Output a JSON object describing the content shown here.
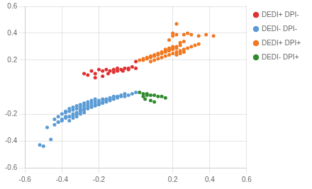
{
  "chart_data": {
    "type": "scatter",
    "series": [
      {
        "name": "DEDI+ DPI-",
        "color": "#e03030",
        "values": [
          [
            -0.28,
            0.1
          ],
          [
            -0.24,
            0.12
          ],
          [
            -0.2,
            0.13
          ],
          [
            -0.18,
            0.12
          ],
          [
            -0.16,
            0.13
          ],
          [
            -0.14,
            0.12
          ],
          [
            -0.12,
            0.13
          ],
          [
            -0.1,
            0.14
          ],
          [
            -0.08,
            0.13
          ],
          [
            -0.06,
            0.14
          ],
          [
            -0.04,
            0.14
          ],
          [
            -0.02,
            0.15
          ],
          [
            0.0,
            0.19
          ],
          [
            -0.22,
            0.1
          ],
          [
            -0.18,
            0.08
          ],
          [
            -0.15,
            0.1
          ],
          [
            -0.12,
            0.11
          ],
          [
            -0.1,
            0.12
          ],
          [
            -0.07,
            0.12
          ],
          [
            -0.04,
            0.13
          ],
          [
            0.0,
            0.14
          ],
          [
            -0.26,
            0.09
          ],
          [
            -0.22,
            0.07
          ]
        ]
      },
      {
        "name": "DEDI- DPI-",
        "color": "#5b9bd5",
        "values": [
          [
            -0.52,
            -0.43
          ],
          [
            -0.5,
            -0.44
          ],
          [
            -0.46,
            -0.39
          ],
          [
            -0.42,
            -0.26
          ],
          [
            -0.4,
            -0.25
          ],
          [
            -0.38,
            -0.23
          ],
          [
            -0.36,
            -0.22
          ],
          [
            -0.34,
            -0.21
          ],
          [
            -0.32,
            -0.2
          ],
          [
            -0.3,
            -0.18
          ],
          [
            -0.28,
            -0.17
          ],
          [
            -0.26,
            -0.16
          ],
          [
            -0.24,
            -0.15
          ],
          [
            -0.22,
            -0.14
          ],
          [
            -0.2,
            -0.13
          ],
          [
            -0.18,
            -0.12
          ],
          [
            -0.16,
            -0.11
          ],
          [
            -0.14,
            -0.1
          ],
          [
            -0.12,
            -0.09
          ],
          [
            -0.1,
            -0.08
          ],
          [
            -0.08,
            -0.07
          ],
          [
            -0.06,
            -0.07
          ],
          [
            -0.04,
            -0.06
          ],
          [
            -0.02,
            -0.05
          ],
          [
            0.0,
            -0.04
          ],
          [
            -0.38,
            -0.19
          ],
          [
            -0.36,
            -0.18
          ],
          [
            -0.34,
            -0.17
          ],
          [
            -0.32,
            -0.16
          ],
          [
            -0.3,
            -0.15
          ],
          [
            -0.28,
            -0.14
          ],
          [
            -0.26,
            -0.13
          ],
          [
            -0.24,
            -0.12
          ],
          [
            -0.22,
            -0.11
          ],
          [
            -0.2,
            -0.1
          ],
          [
            -0.18,
            -0.09
          ],
          [
            -0.16,
            -0.09
          ],
          [
            -0.14,
            -0.08
          ],
          [
            -0.12,
            -0.07
          ],
          [
            -0.1,
            -0.07
          ],
          [
            -0.08,
            -0.06
          ],
          [
            -0.06,
            -0.05
          ],
          [
            -0.36,
            -0.22
          ],
          [
            -0.34,
            -0.2
          ],
          [
            -0.32,
            -0.19
          ],
          [
            -0.3,
            -0.17
          ],
          [
            -0.28,
            -0.16
          ],
          [
            -0.26,
            -0.15
          ],
          [
            -0.24,
            -0.14
          ],
          [
            -0.22,
            -0.13
          ],
          [
            -0.2,
            -0.12
          ],
          [
            -0.18,
            -0.11
          ],
          [
            -0.16,
            -0.1
          ],
          [
            -0.14,
            -0.09
          ],
          [
            -0.44,
            -0.24
          ],
          [
            -0.42,
            -0.22
          ],
          [
            -0.4,
            -0.2
          ],
          [
            -0.38,
            -0.18
          ],
          [
            -0.36,
            -0.16
          ],
          [
            -0.34,
            -0.15
          ],
          [
            -0.32,
            -0.14
          ],
          [
            -0.3,
            -0.13
          ],
          [
            -0.28,
            -0.12
          ],
          [
            -0.26,
            -0.11
          ],
          [
            -0.24,
            -0.1
          ],
          [
            -0.22,
            -0.09
          ],
          [
            -0.44,
            -0.28
          ],
          [
            -0.42,
            -0.26
          ],
          [
            -0.4,
            -0.24
          ],
          [
            -0.38,
            -0.22
          ],
          [
            -0.48,
            -0.3
          ],
          [
            -0.36,
            -0.25
          ],
          [
            -0.34,
            -0.23
          ],
          [
            -0.32,
            -0.22
          ],
          [
            -0.3,
            -0.2
          ],
          [
            -0.28,
            -0.19
          ]
        ]
      },
      {
        "name": "DEDI+ DPI+",
        "color": "#f07820",
        "values": [
          [
            0.02,
            0.2
          ],
          [
            0.04,
            0.21
          ],
          [
            0.06,
            0.22
          ],
          [
            0.08,
            0.23
          ],
          [
            0.1,
            0.24
          ],
          [
            0.12,
            0.25
          ],
          [
            0.14,
            0.26
          ],
          [
            0.16,
            0.27
          ],
          [
            0.18,
            0.28
          ],
          [
            0.2,
            0.29
          ],
          [
            0.22,
            0.3
          ],
          [
            0.24,
            0.31
          ],
          [
            0.04,
            0.2
          ],
          [
            0.06,
            0.21
          ],
          [
            0.08,
            0.22
          ],
          [
            0.1,
            0.23
          ],
          [
            0.12,
            0.24
          ],
          [
            0.14,
            0.25
          ],
          [
            0.16,
            0.26
          ],
          [
            0.18,
            0.27
          ],
          [
            0.2,
            0.28
          ],
          [
            0.22,
            0.29
          ],
          [
            0.08,
            0.19
          ],
          [
            0.1,
            0.2
          ],
          [
            0.12,
            0.21
          ],
          [
            0.14,
            0.22
          ],
          [
            0.16,
            0.23
          ],
          [
            0.18,
            0.24
          ],
          [
            0.2,
            0.25
          ],
          [
            0.22,
            0.26
          ],
          [
            0.24,
            0.27
          ],
          [
            0.26,
            0.28
          ],
          [
            0.28,
            0.29
          ],
          [
            0.3,
            0.3
          ],
          [
            0.32,
            0.31
          ],
          [
            0.34,
            0.32
          ],
          [
            0.2,
            0.38
          ],
          [
            0.22,
            0.39
          ],
          [
            0.18,
            0.35
          ],
          [
            0.2,
            0.4
          ],
          [
            0.22,
            0.47
          ],
          [
            0.26,
            0.39
          ],
          [
            0.28,
            0.4
          ],
          [
            0.3,
            0.39
          ],
          [
            0.34,
            0.38
          ],
          [
            0.38,
            0.39
          ],
          [
            0.42,
            0.38
          ],
          [
            0.24,
            0.25
          ],
          [
            0.22,
            0.24
          ],
          [
            0.26,
            0.26
          ],
          [
            0.16,
            0.28
          ],
          [
            0.18,
            0.29
          ],
          [
            0.2,
            0.3
          ],
          [
            0.24,
            0.33
          ],
          [
            0.26,
            0.34
          ]
        ]
      },
      {
        "name": "DEDI- DPI+",
        "color": "#2e8b2e",
        "values": [
          [
            0.04,
            -0.05
          ],
          [
            0.06,
            -0.05
          ],
          [
            0.08,
            -0.06
          ],
          [
            0.1,
            -0.06
          ],
          [
            0.12,
            -0.07
          ],
          [
            0.14,
            -0.07
          ],
          [
            0.16,
            -0.08
          ],
          [
            0.02,
            -0.04
          ],
          [
            0.05,
            -0.09
          ],
          [
            0.08,
            -0.1
          ],
          [
            0.1,
            -0.11
          ],
          [
            0.06,
            -0.06
          ],
          [
            0.04,
            -0.07
          ]
        ]
      }
    ],
    "xlim": [
      -0.6,
      0.6
    ],
    "ylim": [
      -0.6,
      0.6
    ],
    "xticks": [
      -0.6,
      -0.4,
      -0.2,
      0.2,
      0.4,
      0.6
    ],
    "yticks": [
      -0.6,
      -0.4,
      -0.2,
      0.2,
      0.4,
      0.6
    ],
    "grid": true,
    "legend": "right"
  }
}
